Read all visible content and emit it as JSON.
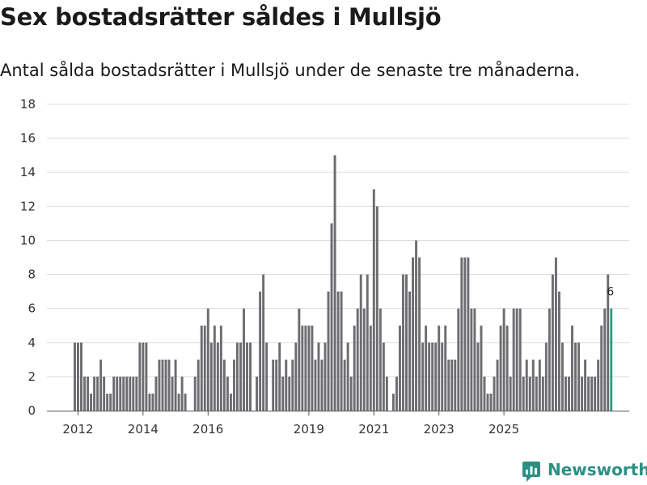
{
  "title": "Sex bostadsrätter såldes i Mullsjö",
  "subtitle": "Antal sålda bostadsrätter i Mullsjö under de senaste tre månaderna.",
  "brand": "Newsworthy",
  "colors": {
    "bar": "#6d6c70",
    "highlight": "#2a9d8f",
    "grid": "#dddddd",
    "axis": "#555555",
    "brand": "#2b8f83"
  },
  "chart_data": {
    "type": "bar",
    "title": "Sex bostadsrätter såldes i Mullsjö",
    "subtitle": "Antal sålda bostadsrätter i Mullsjö under de senaste tre månaderna.",
    "xlabel": "",
    "ylabel": "",
    "ylim": [
      0,
      18
    ],
    "yticks": [
      0,
      2,
      4,
      6,
      8,
      10,
      12,
      14,
      16,
      18
    ],
    "xtick_labels": [
      {
        "label": "2012",
        "index": 1
      },
      {
        "label": "2014",
        "index": 21
      },
      {
        "label": "2016",
        "index": 41
      },
      {
        "label": "2019",
        "index": 72
      },
      {
        "label": "2021",
        "index": 92
      },
      {
        "label": "2023",
        "index": 112
      },
      {
        "label": "2025",
        "index": 132
      }
    ],
    "categories_note": "Monthly periods, 2011-12 through 2025-11 (rolling three-month totals)",
    "values": [
      4,
      4,
      4,
      2,
      2,
      1,
      2,
      2,
      3,
      2,
      1,
      1,
      2,
      2,
      2,
      2,
      2,
      2,
      2,
      2,
      4,
      4,
      4,
      1,
      1,
      2,
      3,
      3,
      3,
      3,
      2,
      3,
      1,
      2,
      1,
      0,
      0,
      2,
      3,
      5,
      5,
      6,
      4,
      5,
      4,
      5,
      3,
      2,
      1,
      3,
      4,
      4,
      6,
      4,
      4,
      0,
      2,
      7,
      8,
      4,
      0,
      3,
      3,
      4,
      2,
      3,
      2,
      3,
      4,
      6,
      5,
      5,
      5,
      5,
      3,
      4,
      3,
      4,
      7,
      11,
      15,
      7,
      7,
      3,
      4,
      2,
      5,
      6,
      8,
      6,
      8,
      5,
      13,
      12,
      6,
      4,
      2,
      0,
      1,
      2,
      5,
      8,
      8,
      7,
      9,
      10,
      9,
      4,
      5,
      4,
      4,
      4,
      5,
      4,
      5,
      3,
      3,
      3,
      6,
      9,
      9,
      9,
      6,
      6,
      4,
      5,
      2,
      1,
      1,
      2,
      3,
      5,
      6,
      5,
      2,
      6,
      6,
      6,
      2,
      3,
      2,
      3,
      2,
      3,
      2,
      4,
      6,
      8,
      9,
      7,
      4,
      2,
      2,
      5,
      4,
      4,
      2,
      3,
      2,
      2,
      2,
      3,
      5,
      6,
      8,
      6
    ],
    "highlight_index": 165,
    "annotation": {
      "index": 165,
      "text": "6"
    }
  }
}
